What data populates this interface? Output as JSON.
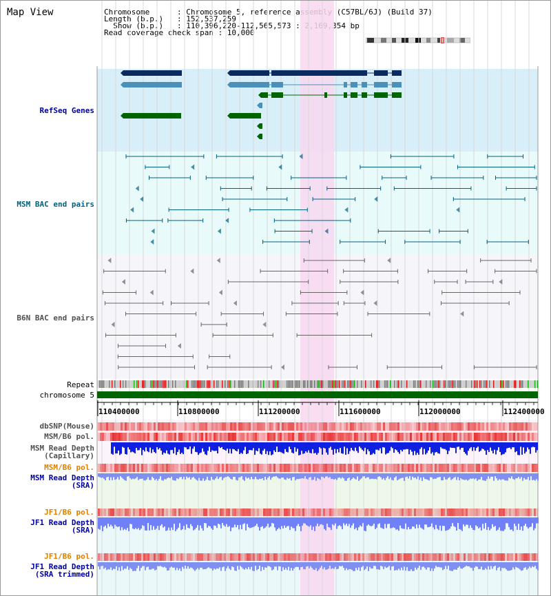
{
  "view": {
    "title": "Map View",
    "info_lines": [
      "Chromosome      : Chromosome 5, reference assembly (C57BL/6J) (Build 37)",
      "Length (b.p.)   : 152,537,259",
      "  Show (b.p.)   : 110,396,220-112,565,573 : 2,169,354 bp",
      "Read coverage check span : 10,000"
    ]
  },
  "tracks": {
    "refseq": {
      "label": "RefSeq Genes",
      "color": "#0000a0"
    },
    "msm_bac": {
      "label": "MSM BAC end pairs",
      "color": "#006080"
    },
    "b6n_bac": {
      "label": "B6N BAC end pairs",
      "color": "#505050"
    },
    "repeat": {
      "label": "Repeat"
    },
    "chromosome": {
      "label": "chromosome 5"
    },
    "dbsnp": {
      "label": "dbSNP(Mouse)"
    },
    "msm_pol_1": {
      "label": "MSM/B6 pol."
    },
    "msm_depth_cap": {
      "label": "MSM Read Depth\n(Capillary)"
    },
    "msm_pol_2": {
      "label": "MSM/B6 pol."
    },
    "msm_depth_sra": {
      "label": "MSM Read Depth\n(SRA)"
    },
    "jf1_pol_1": {
      "label": "JF1/B6 pol."
    },
    "jf1_depth_sra": {
      "label": "JF1 Read Depth\n(SRA)"
    },
    "jf1_pol_2": {
      "label": "JF1/B6 pol."
    },
    "jf1_depth_trim": {
      "label": "JF1 Read Depth\n(SRA trimmed)"
    }
  },
  "axis": {
    "ticks": [
      "110400000",
      "110800000",
      "111200000",
      "111600000",
      "112000000",
      "112400000"
    ]
  },
  "colors": {
    "refseq_bg": "#d8eef8",
    "msm_bg": "#e8fafa",
    "b6n_bg": "#f4f4f8",
    "highlight": "#f8d8f0",
    "gene_dark": "#0a2a60",
    "gene_mid": "#4a90b8",
    "gene_green": "#006400",
    "chromosome": "#006400",
    "depth_cap": "#1020e0",
    "depth_sra": "#8090f0",
    "depth_jf1": "#7080f8",
    "pol": "#f06060"
  }
}
